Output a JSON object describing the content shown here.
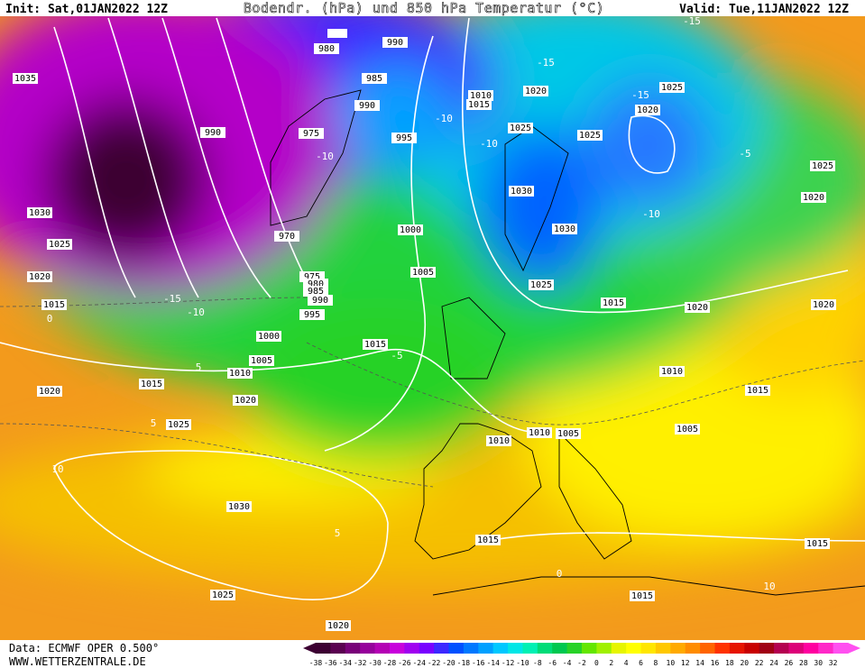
{
  "header": {
    "init": "Init: Sat,01JAN2022 12Z",
    "title": "Bodendr. (hPa) und 850 hPa Temperatur (°C)",
    "valid": "Valid: Tue,11JAN2022 12Z"
  },
  "footer": {
    "source": "Data: ECMWF OPER 0.500°",
    "website": "WWW.WETTERZENTRALE.DE"
  },
  "pressure_labels": [
    "1035",
    "980",
    "990",
    "985",
    "990",
    "1010",
    "1015",
    "1020",
    "1025",
    "1020",
    "1025",
    "1025",
    "990",
    "975",
    "995",
    "1025",
    "1020",
    "1030",
    "1030",
    "970",
    "1000",
    "1025",
    "1030",
    "1005",
    "1020",
    "975",
    "980",
    "985",
    "990",
    "1025",
    "1015",
    "1020",
    "1020",
    "1015",
    "995",
    "1000",
    "1015",
    "1005",
    "1010",
    "1010",
    "1015",
    "1020",
    "1015",
    "1020",
    "1025",
    "1005",
    "1010",
    "1010",
    "1005",
    "1030",
    "1015",
    "1015",
    "1025",
    "1015",
    "1020"
  ],
  "temperature_labels": [
    "-15",
    "-15",
    "-15",
    "-10",
    "-10",
    "-10",
    "-10",
    "-5",
    "-15",
    "-10",
    "-5",
    "0",
    "5",
    "5",
    "10",
    "5",
    "0",
    "10"
  ],
  "colorbar": {
    "values": [
      -38,
      -36,
      -34,
      -32,
      -30,
      -28,
      -26,
      -24,
      -22,
      -20,
      -18,
      -16,
      -14,
      -12,
      -10,
      -8,
      -6,
      -4,
      -2,
      0,
      2,
      4,
      6,
      8,
      10,
      12,
      14,
      16,
      18,
      20,
      22,
      24,
      26,
      28,
      30,
      32
    ],
    "colors": [
      "#3c0032",
      "#5a0050",
      "#780078",
      "#96009b",
      "#b400b4",
      "#c800dc",
      "#a000f0",
      "#7800ff",
      "#3c28ff",
      "#0050ff",
      "#0078ff",
      "#00a0ff",
      "#00c8ff",
      "#00e6e6",
      "#00f0b4",
      "#00dc78",
      "#00c850",
      "#28d228",
      "#64e600",
      "#a0f000",
      "#e6f500",
      "#ffff00",
      "#ffe600",
      "#ffc800",
      "#ffaa00",
      "#ff8c00",
      "#ff6400",
      "#ff3200",
      "#e61400",
      "#c80000",
      "#a00014",
      "#b40050",
      "#dc0078",
      "#ff00a0",
      "#ff28c8",
      "#ff50f0"
    ]
  }
}
